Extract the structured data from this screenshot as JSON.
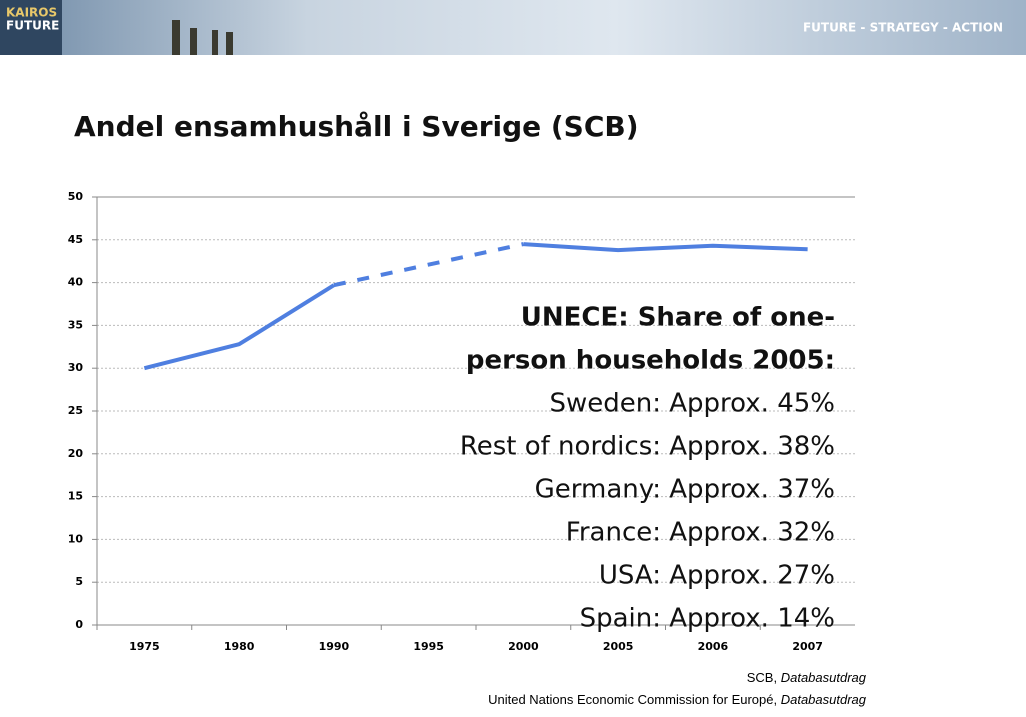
{
  "header": {
    "logo": [
      "KAIROS",
      "FUTURE"
    ],
    "tagline": "FUTURE - STRATEGY - ACTION"
  },
  "chart_data": {
    "type": "line",
    "title": "Andel ensamhushåll i Sverige (SCB)",
    "categories": [
      "1975",
      "1980",
      "1990",
      "1995",
      "2000",
      "2005",
      "2006",
      "2007"
    ],
    "series": [
      {
        "color": "#4f7fe0",
        "values": [
          30,
          32.8,
          39.7,
          null,
          44.5,
          43.8,
          44.3,
          43.9
        ]
      }
    ],
    "dashed_bridge": [
      2,
      4
    ],
    "ylim": [
      0,
      50
    ],
    "yticks": [
      0,
      5,
      10,
      15,
      20,
      25,
      30,
      35,
      40,
      45,
      50
    ],
    "grid": true,
    "annotation": {
      "heading": [
        "UNECE: Share of one-",
        "person households 2005:"
      ],
      "lines": [
        "Sweden: Approx. 45%",
        "Rest of nordics: Approx. 38%",
        "Germany: Approx. 37%",
        "France: Approx. 32%",
        "USA: Approx. 27%",
        "Spain: Approx. 14%"
      ]
    },
    "sources": [
      [
        "SCB, ",
        "Databasutdrag"
      ],
      [
        "United Nations Economic Commission for Europé, ",
        "Databasutdrag"
      ]
    ]
  }
}
